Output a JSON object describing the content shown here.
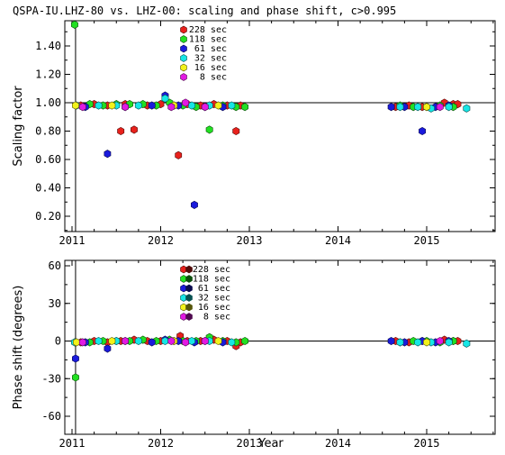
{
  "title": "QSPA-IU.LHZ-80 vs. LHZ-00: scaling and phase shift, c>0.995",
  "colors": {
    "228 sec": "#e8211c",
    "118 sec": "#22e022",
    "61 sec": "#1a1adc",
    "32 sec": "#16e6e6",
    "16 sec": "#f2f21a",
    "8 sec": "#e21ae2"
  },
  "chart_data": [
    {
      "type": "scatter",
      "ylabel": "Scaling factor",
      "xlabel": "",
      "xlim": [
        2010.95,
        2015.75
      ],
      "ylim": [
        0.1,
        1.58
      ],
      "xticks": [
        "2011",
        "2012",
        "2013",
        "2014",
        "2015"
      ],
      "yticks": [
        "0.20",
        "0.40",
        "0.60",
        "0.80",
        "1.00",
        "1.20",
        "1.40"
      ],
      "reference_line": 1.0,
      "vline": 2011.04,
      "legend": [
        "228 sec",
        "118 sec",
        "61 sec",
        "32 sec",
        "16 sec",
        "8 sec"
      ],
      "legend_position": "top-center",
      "series": [
        {
          "name": "228 sec",
          "points": [
            [
              2011.1,
              0.98
            ],
            [
              2011.25,
              0.99
            ],
            [
              2011.4,
              0.98
            ],
            [
              2011.55,
              0.8
            ],
            [
              2011.6,
              0.99
            ],
            [
              2011.7,
              0.81
            ],
            [
              2011.85,
              0.98
            ],
            [
              2012.0,
              0.99
            ],
            [
              2012.15,
              0.98
            ],
            [
              2012.2,
              0.63
            ],
            [
              2012.3,
              0.99
            ],
            [
              2012.45,
              0.98
            ],
            [
              2012.6,
              0.99
            ],
            [
              2012.75,
              0.98
            ],
            [
              2012.85,
              0.8
            ],
            [
              2012.9,
              0.98
            ],
            [
              2014.65,
              0.97
            ],
            [
              2014.8,
              0.98
            ],
            [
              2014.95,
              0.97
            ],
            [
              2015.2,
              1.0
            ],
            [
              2015.3,
              0.99
            ],
            [
              2015.35,
              0.99
            ]
          ]
        },
        {
          "name": "118 sec",
          "points": [
            [
              2011.03,
              1.55
            ],
            [
              2011.2,
              0.99
            ],
            [
              2011.35,
              0.98
            ],
            [
              2011.5,
              0.99
            ],
            [
              2011.65,
              0.99
            ],
            [
              2011.8,
              0.99
            ],
            [
              2011.95,
              0.98
            ],
            [
              2012.1,
              1.0
            ],
            [
              2012.25,
              0.98
            ],
            [
              2012.4,
              0.97
            ],
            [
              2012.55,
              0.81
            ],
            [
              2012.7,
              0.98
            ],
            [
              2012.85,
              0.97
            ],
            [
              2012.95,
              0.97
            ],
            [
              2014.7,
              0.98
            ],
            [
              2014.85,
              0.97
            ],
            [
              2015.0,
              0.97
            ],
            [
              2015.15,
              0.98
            ],
            [
              2015.3,
              0.97
            ]
          ]
        },
        {
          "name": "61 sec",
          "points": [
            [
              2011.15,
              0.97
            ],
            [
              2011.4,
              0.64
            ],
            [
              2011.6,
              0.97
            ],
            [
              2011.9,
              0.98
            ],
            [
              2012.05,
              1.05
            ],
            [
              2012.2,
              0.98
            ],
            [
              2012.38,
              0.28
            ],
            [
              2012.5,
              0.97
            ],
            [
              2012.7,
              0.97
            ],
            [
              2014.6,
              0.97
            ],
            [
              2014.75,
              0.97
            ],
            [
              2014.95,
              0.8
            ],
            [
              2015.1,
              0.97
            ],
            [
              2015.25,
              0.98
            ]
          ]
        },
        {
          "name": "32 sec",
          "points": [
            [
              2011.05,
              0.98
            ],
            [
              2011.3,
              0.98
            ],
            [
              2011.5,
              0.98
            ],
            [
              2011.75,
              0.98
            ],
            [
              2012.05,
              1.03
            ],
            [
              2012.35,
              0.98
            ],
            [
              2012.55,
              0.98
            ],
            [
              2012.8,
              0.98
            ],
            [
              2014.7,
              0.97
            ],
            [
              2014.9,
              0.97
            ],
            [
              2015.05,
              0.96
            ],
            [
              2015.25,
              0.97
            ],
            [
              2015.45,
              0.96
            ]
          ]
        },
        {
          "name": "16 sec",
          "points": [
            [
              2011.04,
              0.98
            ],
            [
              2011.45,
              0.98
            ],
            [
              2012.15,
              0.98
            ],
            [
              2012.65,
              0.98
            ],
            [
              2015.0,
              0.97
            ]
          ]
        },
        {
          "name": "8 sec",
          "points": [
            [
              2011.12,
              0.97
            ],
            [
              2011.6,
              0.97
            ],
            [
              2012.12,
              0.97
            ],
            [
              2012.28,
              1.0
            ],
            [
              2012.5,
              0.97
            ],
            [
              2015.15,
              0.97
            ]
          ]
        }
      ]
    },
    {
      "type": "scatter",
      "ylabel": "Phase shift (degrees)",
      "xlabel": "Year",
      "xlim": [
        2010.95,
        2015.75
      ],
      "ylim": [
        -65,
        65
      ],
      "xticks": [
        "2011",
        "2012",
        "2013",
        "2014",
        "2015"
      ],
      "yticks": [
        "-60",
        "-30",
        "0",
        "30",
        "60"
      ],
      "reference_line": 0,
      "vline": 2011.04,
      "legend": [
        "228 sec",
        "118 sec",
        "61 sec",
        "32 sec",
        "16 sec",
        "8 sec"
      ],
      "legend_position": "top-center",
      "series": [
        {
          "name": "228 sec",
          "points": [
            [
              2011.1,
              -1
            ],
            [
              2011.25,
              0
            ],
            [
              2011.4,
              -1
            ],
            [
              2011.55,
              0
            ],
            [
              2011.7,
              1
            ],
            [
              2011.85,
              0
            ],
            [
              2012.0,
              0
            ],
            [
              2012.15,
              0
            ],
            [
              2012.22,
              4
            ],
            [
              2012.3,
              0
            ],
            [
              2012.45,
              0
            ],
            [
              2012.6,
              1
            ],
            [
              2012.75,
              0
            ],
            [
              2012.85,
              -4
            ],
            [
              2012.9,
              -1
            ],
            [
              2014.65,
              0
            ],
            [
              2014.8,
              -1
            ],
            [
              2014.95,
              0
            ],
            [
              2015.2,
              1
            ],
            [
              2015.3,
              0
            ],
            [
              2015.35,
              0
            ]
          ]
        },
        {
          "name": "118 sec",
          "points": [
            [
              2011.04,
              -29
            ],
            [
              2011.2,
              -1
            ],
            [
              2011.35,
              0
            ],
            [
              2011.5,
              0
            ],
            [
              2011.65,
              0
            ],
            [
              2011.8,
              1
            ],
            [
              2011.95,
              0
            ],
            [
              2012.1,
              1
            ],
            [
              2012.25,
              0
            ],
            [
              2012.4,
              0
            ],
            [
              2012.55,
              3
            ],
            [
              2012.7,
              0
            ],
            [
              2012.85,
              -1
            ],
            [
              2012.95,
              0
            ],
            [
              2014.7,
              -1
            ],
            [
              2014.85,
              0
            ],
            [
              2015.0,
              0
            ],
            [
              2015.15,
              -1
            ],
            [
              2015.3,
              0
            ]
          ]
        },
        {
          "name": "61 sec",
          "points": [
            [
              2011.04,
              -14
            ],
            [
              2011.15,
              -1
            ],
            [
              2011.4,
              -6
            ],
            [
              2011.6,
              0
            ],
            [
              2011.9,
              -1
            ],
            [
              2012.05,
              1
            ],
            [
              2012.2,
              0
            ],
            [
              2012.38,
              -1
            ],
            [
              2012.5,
              0
            ],
            [
              2012.7,
              -1
            ],
            [
              2014.6,
              0
            ],
            [
              2014.75,
              -1
            ],
            [
              2014.95,
              0
            ],
            [
              2015.1,
              -1
            ],
            [
              2015.25,
              0
            ]
          ]
        },
        {
          "name": "32 sec",
          "points": [
            [
              2011.03,
              -1
            ],
            [
              2011.3,
              0
            ],
            [
              2011.5,
              0
            ],
            [
              2011.75,
              0
            ],
            [
              2012.05,
              0
            ],
            [
              2012.35,
              0
            ],
            [
              2012.55,
              0
            ],
            [
              2012.8,
              -1
            ],
            [
              2014.7,
              -1
            ],
            [
              2014.9,
              -1
            ],
            [
              2015.05,
              -1
            ],
            [
              2015.25,
              -1
            ],
            [
              2015.45,
              -2
            ]
          ]
        },
        {
          "name": "16 sec",
          "points": [
            [
              2011.05,
              -1
            ],
            [
              2011.45,
              0
            ],
            [
              2012.15,
              0
            ],
            [
              2012.65,
              0
            ],
            [
              2015.0,
              -1
            ]
          ]
        },
        {
          "name": "8 sec",
          "points": [
            [
              2011.12,
              -1
            ],
            [
              2011.6,
              0
            ],
            [
              2012.12,
              0
            ],
            [
              2012.28,
              -1
            ],
            [
              2012.5,
              0
            ],
            [
              2015.15,
              0
            ]
          ]
        }
      ]
    }
  ]
}
